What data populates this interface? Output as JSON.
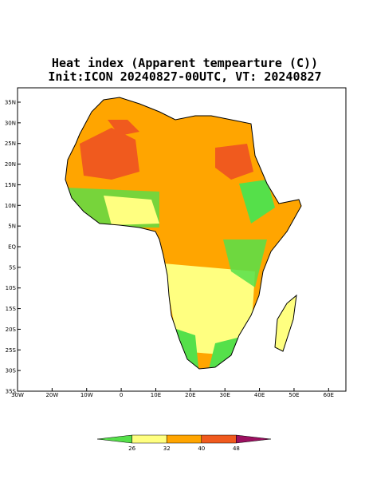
{
  "title": {
    "line1": "Heat index (Apparent tempearture (C))",
    "line2": "Init:ICON 20240827-00UTC, VT: 20240827"
  },
  "map": {
    "lon_ticks": [
      {
        "value": -30,
        "label": "30W"
      },
      {
        "value": -20,
        "label": "20W"
      },
      {
        "value": -10,
        "label": "10W"
      },
      0,
      {
        "value": 10,
        "label": "10E"
      },
      {
        "value": 20,
        "label": "20E"
      },
      {
        "value": 30,
        "label": "30E"
      },
      {
        "value": 40,
        "label": "40E"
      },
      {
        "value": 50,
        "label": "50E"
      },
      {
        "value": 60,
        "label": "60E"
      }
    ],
    "lat_ticks": [
      {
        "value": 35,
        "label": "35N"
      },
      {
        "value": 30,
        "label": "30N"
      },
      {
        "value": 25,
        "label": "25N"
      },
      {
        "value": 20,
        "label": "20N"
      },
      {
        "value": 15,
        "label": "15N"
      },
      {
        "value": 10,
        "label": "10N"
      },
      {
        "value": 5,
        "label": "5N"
      },
      {
        "value": 0,
        "label": "EQ"
      },
      {
        "value": -5,
        "label": "5S"
      },
      {
        "value": -10,
        "label": "10S"
      },
      {
        "value": -15,
        "label": "15S"
      },
      {
        "value": -20,
        "label": "20S"
      },
      {
        "value": -25,
        "label": "25S"
      },
      {
        "value": -30,
        "label": "30S"
      },
      {
        "value": -35,
        "label": "35S"
      }
    ]
  },
  "colorbar": {
    "levels": [
      26,
      32,
      40,
      48
    ],
    "colors": [
      "#55e04a",
      "#ffff80",
      "#ffa500",
      "#f05a1e",
      "#9c1060"
    ]
  }
}
